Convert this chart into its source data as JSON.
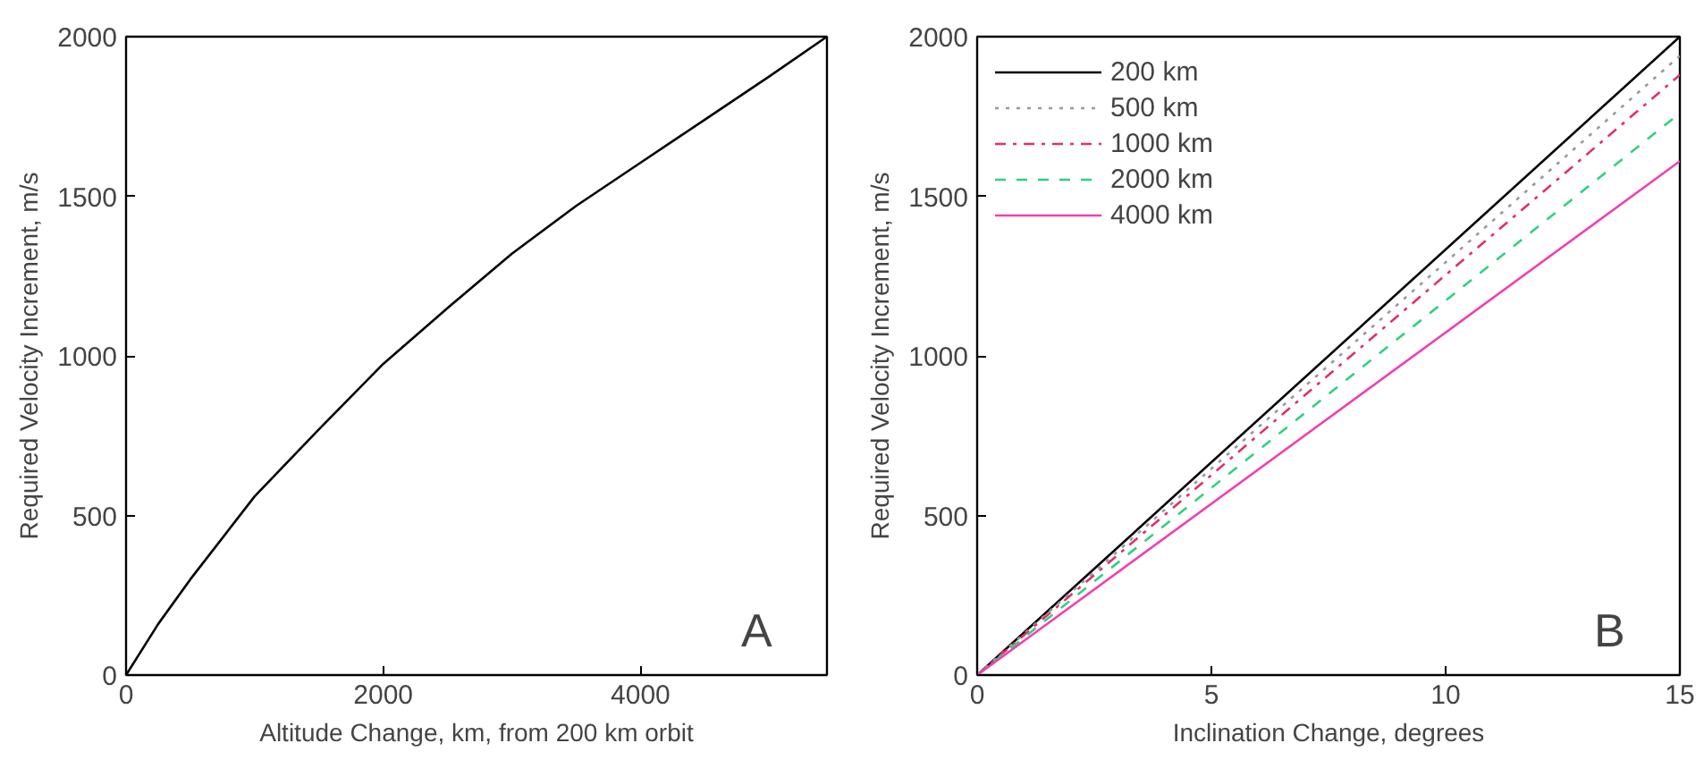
{
  "chart_data": [
    {
      "type": "line",
      "xlabel": "Altitude Change, km, from 200 km orbit",
      "ylabel": "Required Velocity Increment, m/s",
      "xlim": [
        0,
        5450
      ],
      "ylim": [
        0,
        2000
      ],
      "xticks": [
        0,
        2000,
        4000
      ],
      "yticks": [
        0,
        500,
        1000,
        1500,
        2000
      ],
      "grid": false,
      "legend": false,
      "annotations": [
        "A"
      ],
      "series": [
        {
          "color": "#000000",
          "line_style": "solid",
          "x": [
            0,
            250,
            500,
            1000,
            1500,
            2000,
            2500,
            3000,
            3500,
            4000,
            4500,
            5000,
            5450
          ],
          "values": [
            0,
            160,
            300,
            560,
            770,
            975,
            1150,
            1320,
            1470,
            1605,
            1740,
            1875,
            2000
          ]
        }
      ]
    },
    {
      "type": "line",
      "xlabel": "Inclination Change, degrees",
      "ylabel": "Required Velocity Increment, m/s",
      "xlim": [
        0,
        15
      ],
      "ylim": [
        0,
        2000
      ],
      "xticks": [
        0,
        5,
        10,
        15
      ],
      "yticks": [
        0,
        500,
        1000,
        1500,
        2000
      ],
      "grid": false,
      "legend": "top left",
      "annotations": [
        "B"
      ],
      "series": [
        {
          "name": "200 km",
          "color": "#000000",
          "line_style": "solid",
          "x": [
            0,
            15
          ],
          "values": [
            0,
            2000
          ]
        },
        {
          "name": "500 km",
          "color": "#999999",
          "line_style": "dotted",
          "x": [
            0,
            15
          ],
          "values": [
            0,
            1940
          ]
        },
        {
          "name": "1000 km",
          "color": "#e0306a",
          "line_style": "dashdot",
          "x": [
            0,
            15
          ],
          "values": [
            0,
            1880
          ]
        },
        {
          "name": "2000 km",
          "color": "#30d080",
          "line_style": "dashed",
          "x": [
            0,
            15
          ],
          "values": [
            0,
            1760
          ]
        },
        {
          "name": "4000 km",
          "color": "#f040b0",
          "line_style": "solid",
          "x": [
            0,
            15
          ],
          "values": [
            0,
            1610
          ]
        }
      ]
    }
  ]
}
